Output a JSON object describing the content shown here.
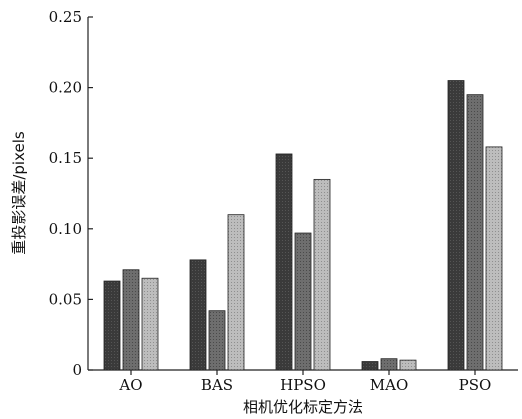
{
  "chart_data": {
    "type": "bar",
    "categories": [
      "AO",
      "BAS",
      "HPSO",
      "MAO",
      "PSO"
    ],
    "series": [
      {
        "values": [
          0.063,
          0.078,
          0.153,
          0.006,
          0.205
        ],
        "color": "#3a3a3a"
      },
      {
        "values": [
          0.071,
          0.042,
          0.097,
          0.008,
          0.195
        ],
        "color": "#6e6e6e"
      },
      {
        "values": [
          0.065,
          0.11,
          0.135,
          0.007,
          0.158
        ],
        "color": "#b8b8b8"
      }
    ],
    "title": "",
    "xlabel": "相机优化标定方法",
    "ylabel": "重投影误差/pixels",
    "ylim": [
      0,
      0.25
    ],
    "yticks": [
      "0",
      "0.05",
      "0.10",
      "0.15",
      "0.20",
      "0.25"
    ],
    "grid": false,
    "legend": "none"
  }
}
